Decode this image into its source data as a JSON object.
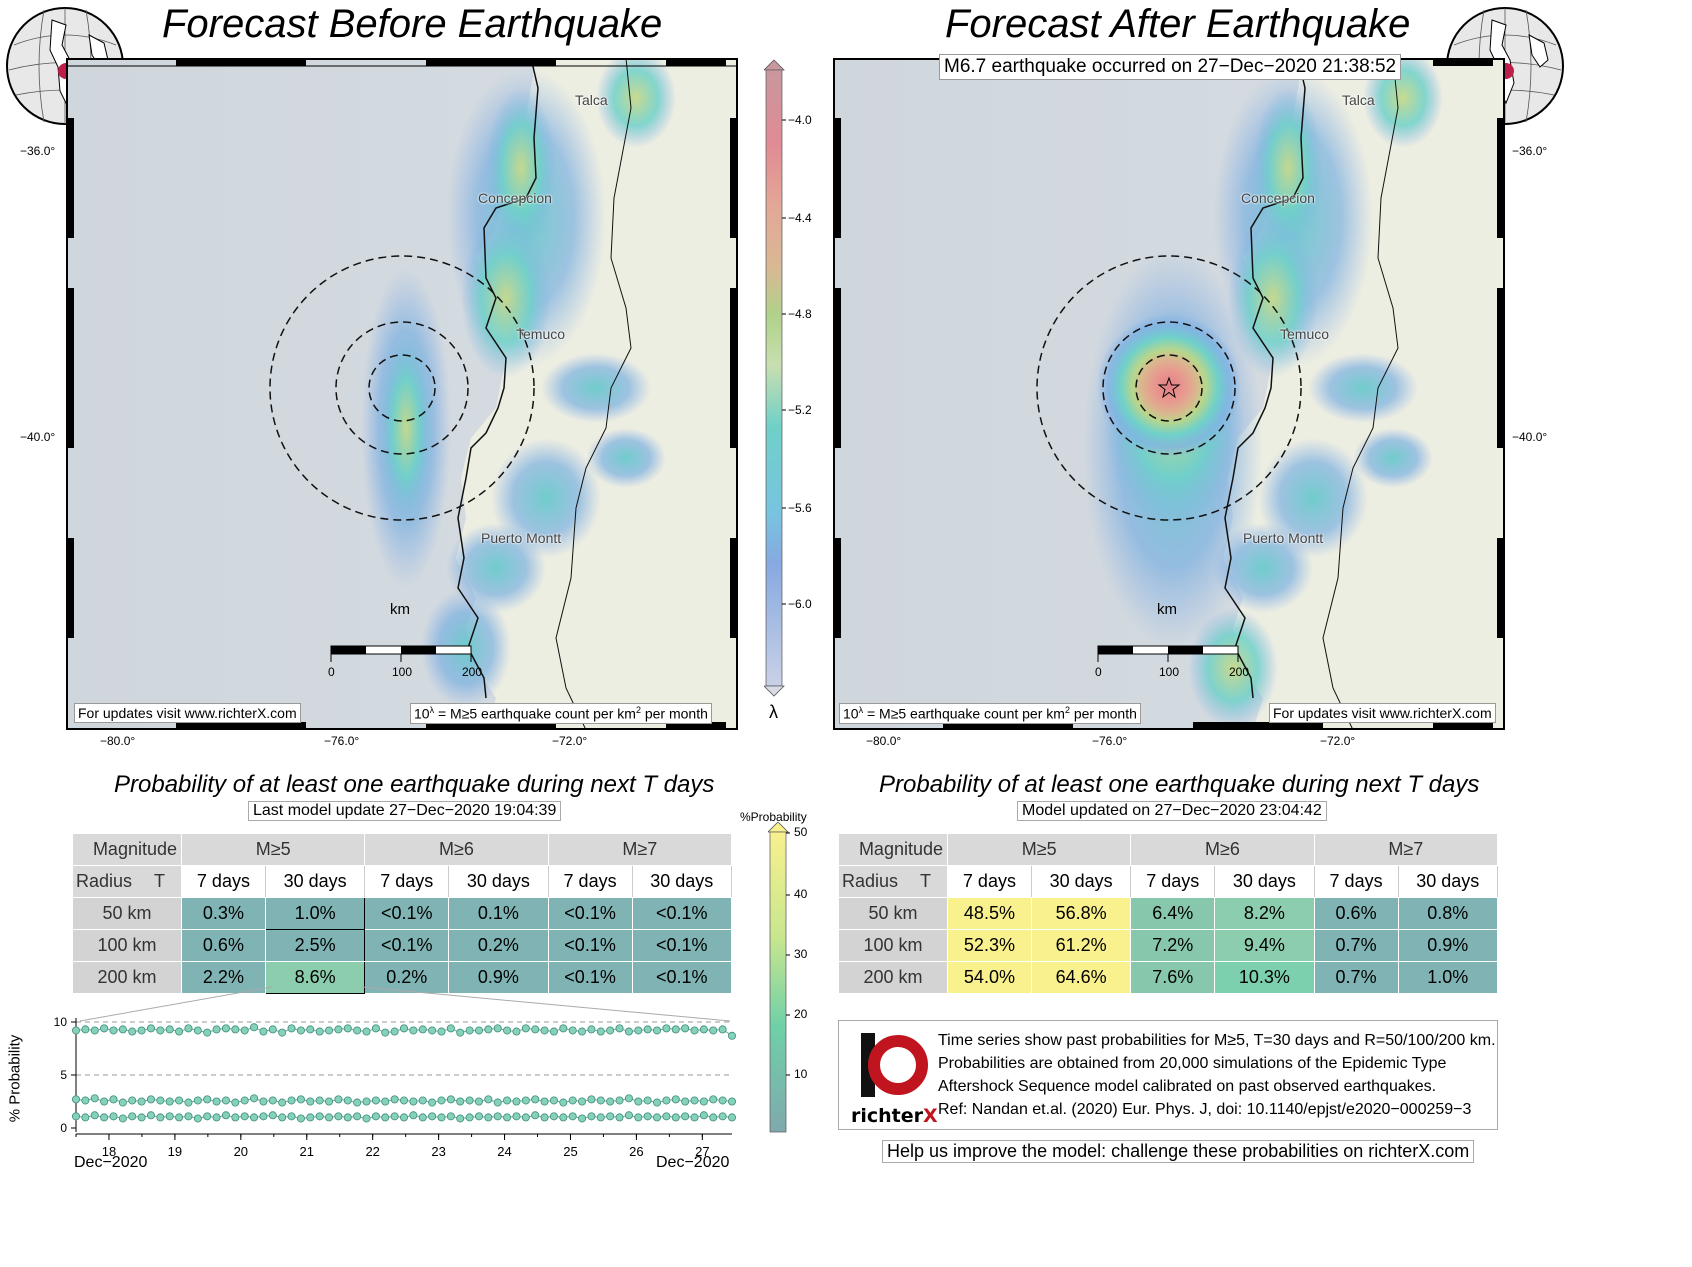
{
  "left": {
    "title": "Forecast Before Earthquake",
    "footer_left": "For updates visit www.richterX.com",
    "footer_right_pre": "10",
    "footer_right_sup": "λ",
    "footer_right_post": " = M≥5 earthquake count per km",
    "footer_right_sup2": "2",
    "footer_right_end": " per month",
    "table_title": "Probability of at least one earthquake during next T days",
    "update_label": "Last model update 27−Dec−2020 19:04:39",
    "table": {
      "corner_top": "Magnitude",
      "corner_bottom_left": "Radius",
      "corner_bottom_right": "T",
      "magnitudes": [
        "M≥5",
        "M≥6",
        "M≥7"
      ],
      "periods": [
        "7 days",
        "30 days",
        "7 days",
        "30 days",
        "7 days",
        "30 days"
      ],
      "rows": [
        {
          "radius": "50 km",
          "values": [
            "0.3%",
            "1.0%",
            "<0.1%",
            "0.1%",
            "<0.1%",
            "<0.1%"
          ]
        },
        {
          "radius": "100 km",
          "values": [
            "0.6%",
            "2.5%",
            "<0.1%",
            "0.2%",
            "<0.1%",
            "<0.1%"
          ]
        },
        {
          "radius": "200 km",
          "values": [
            "2.2%",
            "8.6%",
            "0.2%",
            "0.9%",
            "<0.1%",
            "<0.1%"
          ]
        }
      ]
    }
  },
  "right": {
    "title": "Forecast After Earthquake",
    "event_label": "M6.7 earthquake occurred on 27−Dec−2020 21:38:52",
    "footer_right": "For updates visit www.richterX.com",
    "footer_left_pre": "10",
    "footer_left_sup": "λ",
    "footer_left_post": " = M≥5 earthquake count per km",
    "footer_left_sup2": "2",
    "footer_left_end": " per month",
    "table_title": "Probability of at least one earthquake during next T days",
    "update_label": "Model updated on 27−Dec−2020 23:04:42",
    "table": {
      "corner_top": "Magnitude",
      "corner_bottom_left": "Radius",
      "corner_bottom_right": "T",
      "magnitudes": [
        "M≥5",
        "M≥6",
        "M≥7"
      ],
      "periods": [
        "7 days",
        "30 days",
        "7 days",
        "30 days",
        "7 days",
        "30 days"
      ],
      "rows": [
        {
          "radius": "50 km",
          "values": [
            "48.5%",
            "56.8%",
            "6.4%",
            "8.2%",
            "0.6%",
            "0.8%"
          ]
        },
        {
          "radius": "100 km",
          "values": [
            "52.3%",
            "61.2%",
            "7.2%",
            "9.4%",
            "0.7%",
            "0.9%"
          ]
        },
        {
          "radius": "200 km",
          "values": [
            "54.0%",
            "64.6%",
            "7.6%",
            "10.3%",
            "0.7%",
            "1.0%"
          ]
        }
      ]
    }
  },
  "map": {
    "lat_labels": [
      "−36.0°",
      "−40.0°"
    ],
    "lon_labels": [
      "−80.0°",
      "−76.0°",
      "−72.0°"
    ],
    "cities": [
      "Talca",
      "Concepcion",
      "Temuco",
      "Puerto Montt"
    ],
    "scale_unit": "km",
    "scale_ticks": [
      "0",
      "100",
      "200"
    ]
  },
  "colorbar": {
    "ticks": [
      "−4.0",
      "−4.4",
      "−4.8",
      "−5.2",
      "−5.6",
      "−6.0"
    ],
    "label": "λ"
  },
  "prob_colorbar": {
    "title": "%Probability",
    "ticks": [
      "50",
      "40",
      "30",
      "20",
      "10"
    ]
  },
  "info": {
    "logo_number": "10",
    "logo_text": "richter",
    "logo_text_accent": "X",
    "lines": [
      "Time series show past probabilities for M≥5, T=30 days and R=50/100/200 km.",
      "Probabilities are obtained from 20,000 simulations of the Epidemic Type",
      "Aftershock Sequence model calibrated on past observed earthquakes.",
      "Ref: Nandan et.al. (2020) Eur. Phys. J, doi: 10.1140/epjst/e2020−000259−3"
    ],
    "help": "Help us improve the model: challenge these probabilities on richterX.com"
  },
  "chart_data": {
    "type": "line",
    "title": "",
    "xlabel": "",
    "ylabel": "% Probability",
    "x_tick_labels": [
      "18",
      "19",
      "20",
      "21",
      "22",
      "23",
      "24",
      "25",
      "26",
      "27"
    ],
    "x_range_labels": [
      "Dec−2020",
      "Dec−2020"
    ],
    "y_tick_labels": [
      "0",
      "5",
      "10"
    ],
    "ylim": [
      0,
      10
    ],
    "x_start": 17.5,
    "x_end": 27.45,
    "series": [
      {
        "values": [
          9.2,
          9.3,
          9.2,
          9.4,
          9.2,
          9.3,
          9.1,
          9.2,
          9.4,
          9.2,
          9.3,
          9.1,
          9.4,
          9.2,
          9.0,
          9.3,
          9.4,
          9.3,
          9.2,
          9.5,
          9.1,
          9.3,
          9.0,
          9.4,
          9.2,
          9.3,
          9.1,
          9.2,
          9.3,
          9.4,
          9.2,
          9.1,
          9.4,
          9.0,
          9.1,
          9.4,
          9.2,
          9.3,
          9.2,
          9.1,
          9.4,
          9.0,
          9.2,
          9.2,
          9.3,
          9.4,
          9.2,
          9.1,
          9.4,
          9.3,
          9.2,
          9.1,
          9.4,
          9.2,
          9.1,
          9.3,
          9.1,
          9.2,
          9.4,
          9.1,
          9.2,
          9.3,
          9.2,
          9.4,
          9.3,
          9.4,
          9.2,
          9.3,
          9.2,
          9.3,
          8.7
        ]
      },
      {
        "values": [
          2.7,
          2.6,
          2.8,
          2.5,
          2.7,
          2.4,
          2.6,
          2.5,
          2.7,
          2.6,
          2.5,
          2.6,
          2.4,
          2.6,
          2.7,
          2.5,
          2.6,
          2.4,
          2.6,
          2.8,
          2.5,
          2.6,
          2.4,
          2.6,
          2.7,
          2.5,
          2.6,
          2.5,
          2.7,
          2.6,
          2.4,
          2.5,
          2.6,
          2.5,
          2.7,
          2.6,
          2.5,
          2.6,
          2.4,
          2.6,
          2.7,
          2.5,
          2.6,
          2.5,
          2.7,
          2.4,
          2.6,
          2.5,
          2.6,
          2.7,
          2.5,
          2.6,
          2.4,
          2.6,
          2.5,
          2.7,
          2.6,
          2.5,
          2.6,
          2.8,
          2.5,
          2.6,
          2.4,
          2.6,
          2.7,
          2.5,
          2.6,
          2.5,
          2.7,
          2.6,
          2.5
        ]
      },
      {
        "values": [
          1.1,
          1.0,
          1.2,
          1.0,
          1.1,
          0.9,
          1.1,
          1.0,
          1.2,
          1.0,
          1.1,
          1.0,
          1.1,
          0.9,
          1.1,
          1.0,
          1.2,
          1.0,
          1.1,
          1.0,
          1.1,
          1.2,
          1.0,
          1.1,
          0.9,
          1.0,
          1.1,
          1.0,
          1.1,
          1.0,
          1.1,
          0.9,
          1.1,
          1.0,
          1.1,
          1.0,
          1.2,
          1.0,
          1.1,
          1.0,
          1.1,
          0.9,
          1.0,
          1.1,
          1.0,
          1.1,
          1.0,
          1.1,
          1.0,
          1.2,
          1.0,
          1.1,
          1.0,
          1.1,
          0.9,
          1.1,
          1.0,
          1.1,
          1.0,
          1.2,
          1.0,
          1.1,
          1.0,
          1.1,
          1.0,
          1.1,
          1.0,
          1.2,
          1.0,
          1.1,
          1.0
        ]
      }
    ]
  }
}
